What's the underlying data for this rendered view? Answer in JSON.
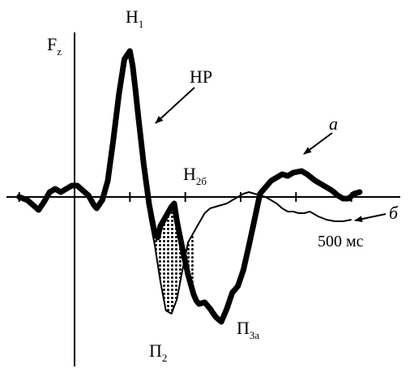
{
  "chart_data": {
    "type": "line",
    "ylabel": {
      "main": "F",
      "sub": "z"
    },
    "time_label": "500 мс",
    "peaks": {
      "N1": {
        "main": "Н",
        "sub": "1"
      },
      "NR": {
        "main": "НР"
      },
      "N2b": {
        "main": "Н",
        "sub": "2б"
      },
      "P2": {
        "main": "П",
        "sub": "2"
      },
      "P3a": {
        "main": "П",
        "sub": "3а"
      }
    },
    "curve_labels": {
      "a": "а",
      "b": "б"
    },
    "x_ticks_ms": [
      -100,
      0,
      100,
      200,
      300,
      400,
      500
    ],
    "xlim_ms": [
      -100,
      530
    ],
    "ylim": [
      -1.0,
      1.0
    ],
    "series": [
      {
        "name": "а",
        "x": [
          -100,
          -85,
          -75,
          -65,
          -55,
          -45,
          -35,
          -25,
          -15,
          -5,
          5,
          15,
          25,
          35,
          40,
          50,
          60,
          70,
          80,
          90,
          100,
          105,
          110,
          115,
          125,
          135,
          145,
          150,
          155,
          165,
          175,
          180,
          185,
          195,
          205,
          215,
          220,
          225,
          235,
          245,
          255,
          265,
          275,
          285,
          295,
          305,
          315,
          325,
          335,
          345,
          355,
          365,
          375,
          385,
          395,
          410,
          420,
          435,
          445,
          455,
          465,
          475,
          485,
          495,
          505,
          515
        ],
        "y": [
          0.0,
          -0.02,
          -0.05,
          -0.08,
          -0.03,
          0.03,
          0.05,
          0.03,
          0.05,
          0.07,
          0.07,
          0.04,
          0.01,
          -0.05,
          -0.07,
          -0.02,
          0.1,
          0.35,
          0.63,
          0.85,
          0.9,
          0.81,
          0.66,
          0.5,
          0.2,
          -0.05,
          -0.23,
          -0.25,
          -0.18,
          -0.12,
          -0.06,
          -0.04,
          -0.15,
          -0.32,
          -0.48,
          -0.6,
          -0.64,
          -0.66,
          -0.65,
          -0.69,
          -0.74,
          -0.77,
          -0.69,
          -0.59,
          -0.55,
          -0.45,
          -0.3,
          -0.14,
          0.02,
          0.06,
          0.1,
          0.12,
          0.14,
          0.13,
          0.15,
          0.16,
          0.14,
          0.1,
          0.08,
          0.06,
          0.04,
          0.01,
          -0.01,
          -0.01,
          0.02,
          0.03
        ]
      },
      {
        "name": "б",
        "x": [
          -100,
          -85,
          -75,
          -65,
          -55,
          -45,
          -35,
          -25,
          -15,
          -5,
          5,
          15,
          25,
          35,
          40,
          50,
          60,
          70,
          80,
          90,
          100,
          105,
          110,
          115,
          125,
          135,
          145,
          155,
          165,
          175,
          185,
          195,
          205,
          215,
          225,
          235,
          245,
          255,
          265,
          275,
          285,
          295,
          305,
          315,
          325,
          335,
          345,
          355,
          365,
          375,
          385,
          395,
          405,
          415,
          425,
          440,
          455,
          470,
          485,
          500
        ],
        "y": [
          0.0,
          -0.02,
          -0.05,
          -0.08,
          -0.03,
          0.03,
          0.05,
          0.03,
          0.05,
          0.07,
          0.07,
          0.04,
          0.01,
          -0.05,
          -0.07,
          -0.02,
          0.1,
          0.35,
          0.63,
          0.85,
          0.9,
          0.78,
          0.6,
          0.42,
          0.15,
          -0.12,
          -0.3,
          -0.52,
          -0.7,
          -0.72,
          -0.63,
          -0.45,
          -0.28,
          -0.22,
          -0.16,
          -0.1,
          -0.07,
          -0.06,
          -0.05,
          -0.04,
          -0.02,
          0.0,
          0.02,
          0.03,
          0.02,
          0.01,
          0.0,
          -0.02,
          -0.04,
          -0.07,
          -0.09,
          -0.09,
          -0.1,
          -0.1,
          -0.09,
          -0.12,
          -0.14,
          -0.15,
          -0.15,
          -0.14
        ]
      }
    ]
  }
}
